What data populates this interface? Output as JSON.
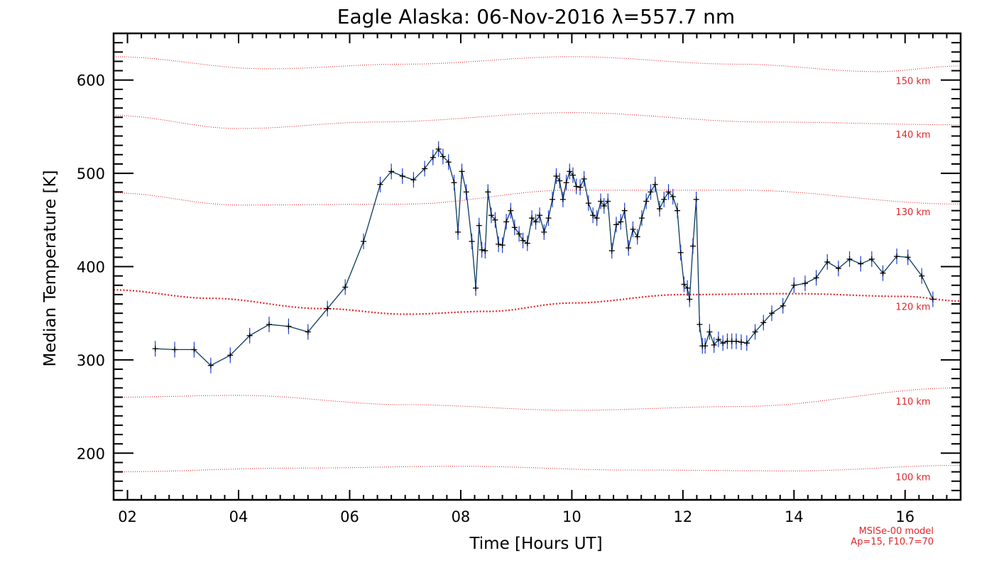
{
  "chart_data": {
    "type": "line",
    "title": "Eagle Alaska: 06-Nov-2016 λ=557.7 nm",
    "xlabel": "Time [Hours UT]",
    "ylabel": "Median Temperature [K]",
    "xlim": [
      1.75,
      17.0
    ],
    "ylim": [
      150,
      650
    ],
    "x_tick_labels": [
      "02",
      "04",
      "06",
      "08",
      "10",
      "12",
      "14",
      "16"
    ],
    "y_tick_labels": [
      "200",
      "300",
      "400",
      "500",
      "600"
    ],
    "grid": false,
    "credit": [
      "MSISe-00 model",
      "Ap=15, F10.7=70"
    ],
    "colors": {
      "series": "#1a3fd6",
      "line": "#0a3a5a",
      "model": "#e0262a",
      "axis": "#000000"
    },
    "series": [
      {
        "x": [
          2.5,
          2.85,
          3.2,
          3.5,
          3.85,
          4.2,
          4.55,
          4.9,
          5.25,
          5.6,
          5.92,
          6.25,
          6.55,
          6.75,
          6.95,
          7.15,
          7.35,
          7.5,
          7.6,
          7.68,
          7.78,
          7.88,
          7.95,
          8.02,
          8.1,
          8.2,
          8.27,
          8.33,
          8.38,
          8.44,
          8.49,
          8.55,
          8.62,
          8.68,
          8.75,
          8.82,
          8.9,
          8.97,
          9.05,
          9.12,
          9.2,
          9.28,
          9.35,
          9.42,
          9.5,
          9.58,
          9.65,
          9.72,
          9.78,
          9.84,
          9.9,
          9.96,
          10.02,
          10.08,
          10.15,
          10.22,
          10.3,
          10.38,
          10.45,
          10.52,
          10.58,
          10.65,
          10.72,
          10.8,
          10.88,
          10.95,
          11.02,
          11.1,
          11.18,
          11.26,
          11.34,
          11.42,
          11.5,
          11.58,
          11.66,
          11.74,
          11.82,
          11.9,
          11.96,
          12.02,
          12.08,
          12.12,
          12.18,
          12.24,
          12.3,
          12.35,
          12.4,
          12.48,
          12.56,
          12.64,
          12.72,
          12.8,
          12.88,
          12.96,
          13.05,
          13.15,
          13.3,
          13.45,
          13.6,
          13.8,
          14.0,
          14.2,
          14.4,
          14.6,
          14.8,
          15.0,
          15.2,
          15.4,
          15.6,
          15.85,
          16.05,
          16.3,
          16.5
        ],
        "y": [
          312,
          311,
          311,
          294,
          305,
          326,
          338,
          336,
          330,
          355,
          378,
          427,
          488,
          502,
          497,
          493,
          505,
          517,
          526,
          518,
          512,
          490,
          437,
          502,
          480,
          427,
          377,
          444,
          418,
          417,
          480,
          455,
          450,
          424,
          423,
          448,
          460,
          442,
          435,
          428,
          425,
          452,
          448,
          455,
          437,
          452,
          472,
          497,
          492,
          472,
          490,
          502,
          498,
          486,
          485,
          494,
          468,
          455,
          452,
          470,
          465,
          470,
          417,
          445,
          448,
          460,
          420,
          440,
          432,
          452,
          470,
          480,
          488,
          462,
          472,
          480,
          475,
          460,
          415,
          381,
          377,
          365,
          422,
          472,
          338,
          315,
          315,
          330,
          316,
          322,
          318,
          320,
          320,
          320,
          319,
          318,
          330,
          340,
          350,
          358,
          380,
          382,
          388,
          405,
          398,
          408,
          403,
          408,
          393,
          411,
          410,
          390,
          365
        ]
      }
    ],
    "model_curves": [
      {
        "name": "100 km",
        "x": [
          1.75,
          5.0,
          8.0,
          11.0,
          14.0,
          17.0
        ],
        "y": [
          180,
          184,
          186,
          182,
          181,
          187
        ]
      },
      {
        "name": "110 km",
        "x": [
          1.75,
          4.0,
          7.0,
          10.0,
          13.0,
          17.0
        ],
        "y": [
          260,
          262,
          252,
          246,
          250,
          270
        ]
      },
      {
        "name": "120 km",
        "x": [
          1.75,
          3.5,
          5.5,
          7.0,
          8.5,
          10.0,
          12.0,
          14.0,
          16.0,
          17.0
        ],
        "y": [
          375,
          366,
          355,
          349,
          352,
          361,
          370,
          371,
          368,
          363
        ]
      },
      {
        "name": "130 km",
        "x": [
          1.75,
          4.0,
          7.0,
          10.0,
          13.0,
          17.0
        ],
        "y": [
          479,
          466,
          467,
          482,
          482,
          467
        ]
      },
      {
        "name": "140 km",
        "x": [
          1.75,
          4.0,
          6.5,
          10.0,
          13.5,
          17.0
        ],
        "y": [
          562,
          548,
          555,
          565,
          555,
          552
        ]
      },
      {
        "name": "150 km",
        "x": [
          1.75,
          4.5,
          7.0,
          10.0,
          13.0,
          15.5,
          17.0
        ],
        "y": [
          625,
          612,
          617,
          625,
          617,
          609,
          615
        ]
      }
    ]
  }
}
